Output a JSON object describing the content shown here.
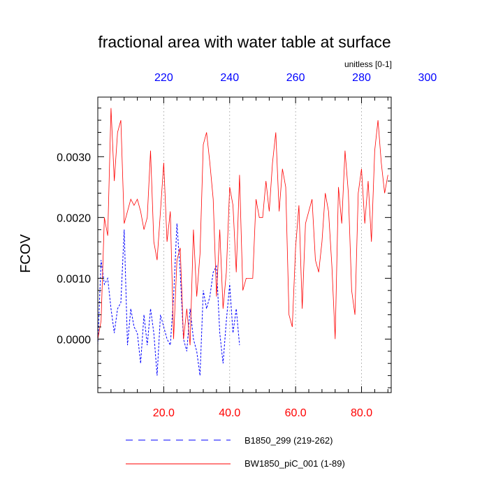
{
  "chart_data": {
    "type": "line",
    "title": "fractional area with water table at surface",
    "units_label": "unitless [0-1]",
    "ylabel": "FCOV",
    "xlim": [
      0,
      89
    ],
    "ylim": [
      -0.00088,
      0.00398
    ],
    "yticks": [
      0,
      0.001,
      0.002,
      0.003
    ],
    "ytick_labels": [
      "0.0000",
      "0.0010",
      "0.0020",
      "0.0030"
    ],
    "xticks_bottom": [
      20,
      40,
      60,
      80
    ],
    "xtick_bottom_labels": [
      "20.0",
      "40.0",
      "60.0",
      "80.0"
    ],
    "xticks_top": [
      220,
      240,
      260,
      280,
      300
    ],
    "xtick_top_labels": [
      "220",
      "240",
      "260",
      "280",
      "300"
    ],
    "top_axis_offset": 200,
    "colors": {
      "red_series": "#ff0000",
      "blue_series": "#0000ff",
      "axis_top": "#0000ff",
      "axis_bottom": "#ff0000",
      "grid": "#aaaaaa"
    },
    "series": [
      {
        "name": "B1850_299 (219-262)",
        "color": "#0000ff",
        "dash": "dash",
        "x": [
          0,
          1,
          2,
          3,
          4,
          5,
          6,
          7,
          8,
          9,
          10,
          11,
          12,
          13,
          14,
          15,
          16,
          17,
          18,
          19,
          20,
          21,
          22,
          23,
          24,
          25,
          26,
          27,
          28,
          29,
          30,
          31,
          32,
          33,
          34,
          35,
          36,
          37,
          38,
          39,
          40,
          41,
          42,
          43
        ],
        "values": [
          -0.0001,
          0.0013,
          0.0009,
          0.001,
          0.0005,
          0.0001,
          0.0005,
          0.0006,
          0.0018,
          -0.0001,
          0.0005,
          0.0002,
          0.0001,
          -0.0004,
          0.0004,
          -0.0001,
          0.0005,
          0.0001,
          -0.0006,
          0.0004,
          0.0002,
          0.0,
          -0.0001,
          0.0007,
          0.0019,
          0.0011,
          0.0,
          -0.0002,
          0.0005,
          0.0,
          -0.0002,
          -0.0006,
          0.0008,
          0.0005,
          0.0007,
          0.0011,
          0.0012,
          0.0001,
          -0.0004,
          0.0003,
          0.0009,
          0.0001,
          0.0005,
          -0.0001
        ]
      },
      {
        "name": "BW1850_piC_001 (1-89)",
        "color": "#ff0000",
        "dash": "solid",
        "x": [
          0,
          1,
          2,
          3,
          4,
          5,
          6,
          7,
          8,
          9,
          10,
          11,
          12,
          13,
          14,
          15,
          16,
          17,
          18,
          19,
          20,
          21,
          22,
          23,
          24,
          25,
          26,
          27,
          28,
          29,
          30,
          31,
          32,
          33,
          34,
          35,
          36,
          37,
          38,
          39,
          40,
          41,
          42,
          43,
          44,
          45,
          46,
          47,
          48,
          49,
          50,
          51,
          52,
          53,
          54,
          55,
          56,
          57,
          58,
          59,
          60,
          61,
          62,
          63,
          64,
          65,
          66,
          67,
          68,
          69,
          70,
          71,
          72,
          73,
          74,
          75,
          76,
          77,
          78,
          79,
          80,
          81,
          82,
          83,
          84,
          85,
          86,
          87,
          88
        ],
        "values": [
          0.0,
          0.0003,
          0.002,
          0.0017,
          0.0038,
          0.0026,
          0.0034,
          0.0036,
          0.0019,
          0.0021,
          0.0023,
          0.0022,
          0.0023,
          0.0021,
          0.0018,
          0.002,
          0.0031,
          0.0016,
          0.0013,
          0.0021,
          0.0029,
          0.0016,
          0.0021,
          0.0,
          0.0013,
          0.0015,
          0.0,
          0.0005,
          -0.0001,
          0.0018,
          0.0007,
          0.0014,
          0.0032,
          0.0034,
          0.0029,
          0.0023,
          0.0007,
          0.0018,
          0.0005,
          0.0011,
          0.0025,
          0.0022,
          0.0011,
          0.0027,
          0.0008,
          0.001,
          0.001,
          0.001,
          0.0023,
          0.002,
          0.002,
          0.0026,
          0.0021,
          0.0029,
          0.0034,
          0.0021,
          0.0028,
          0.0025,
          0.0004,
          0.0002,
          0.0015,
          0.0022,
          0.0005,
          0.0019,
          0.0021,
          0.0023,
          0.0013,
          0.0011,
          0.0016,
          0.0024,
          0.0021,
          0.0012,
          0.0,
          0.0025,
          0.0019,
          0.0031,
          0.0024,
          0.0008,
          0.0004,
          0.0024,
          0.0028,
          0.0019,
          0.0026,
          0.0016,
          0.0031,
          0.0036,
          0.0029,
          0.0024,
          0.0027
        ]
      }
    ],
    "legend": [
      {
        "label": "B1850_299 (219-262)",
        "color": "#0000ff",
        "dash": "dash"
      },
      {
        "label": "BW1850_piC_001 (1-89)",
        "color": "#ff0000",
        "dash": "solid"
      }
    ],
    "legend_position": "bottom"
  }
}
